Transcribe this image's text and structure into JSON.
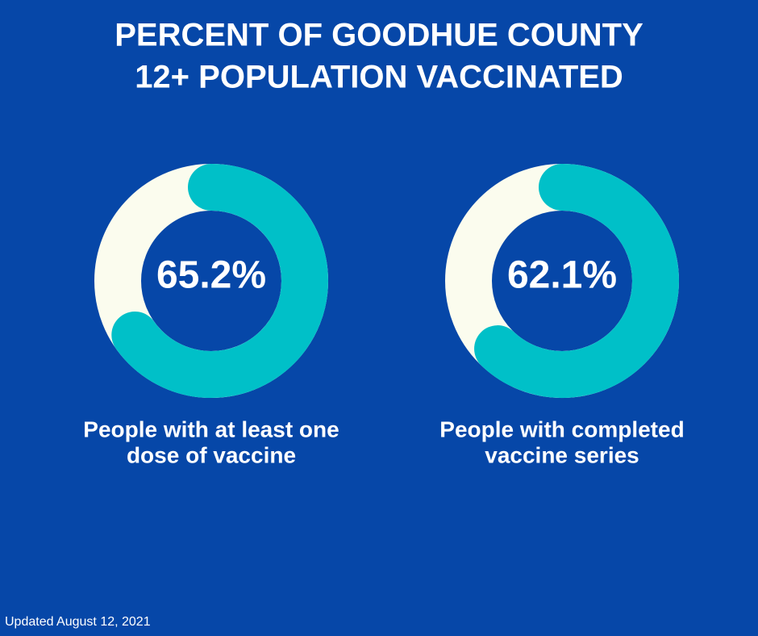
{
  "title": [
    "PERCENT OF GOODHUE COUNTY",
    "12+ POPULATION VACCINATED"
  ],
  "chart_data": [
    {
      "type": "donut",
      "values": [
        65.2
      ],
      "value_labels": [
        "65.2%"
      ],
      "color": "#00c0c8",
      "track_color": "#fbfcee",
      "label": [
        "People with at least one",
        "dose of vaccine"
      ]
    },
    {
      "type": "donut",
      "values": [
        62.1
      ],
      "value_labels": [
        "62.1%"
      ],
      "color": "#00c0c8",
      "track_color": "#fbfcee",
      "label": [
        "People with completed",
        "vaccine series"
      ]
    }
  ],
  "footer": "Updated August 12, 2021"
}
